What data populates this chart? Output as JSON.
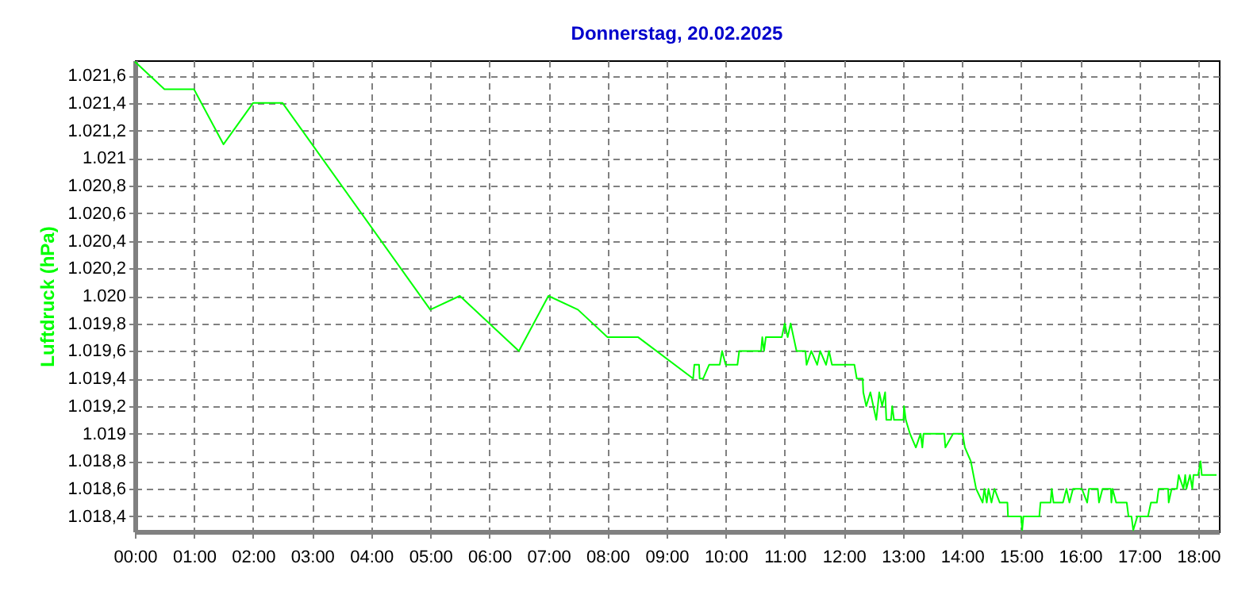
{
  "chart_data": {
    "type": "line",
    "title": "Donnerstag, 20.02.2025",
    "ylabel": "Luftdruck (hPa)",
    "x": [
      0,
      0.5,
      1,
      1.5,
      2,
      2.5,
      5,
      5.5,
      6,
      6.5,
      7,
      7.5,
      8,
      8.52,
      9.45,
      9.47,
      9.55,
      9.56,
      9.62,
      9.72,
      9.9,
      9.94,
      10.0,
      10.2,
      10.23,
      10.6,
      10.62,
      10.65,
      10.68,
      10.95,
      11.0,
      11.05,
      11.1,
      11.15,
      11.2,
      11.35,
      11.37,
      11.45,
      11.55,
      11.6,
      11.7,
      11.75,
      11.8,
      12.18,
      12.22,
      12.32,
      12.33,
      12.38,
      12.45,
      12.5,
      12.55,
      12.6,
      12.65,
      12.7,
      12.72,
      12.8,
      12.82,
      12.85,
      13.01,
      13.02,
      13.05,
      13.12,
      13.22,
      13.3,
      13.33,
      13.35,
      13.7,
      13.72,
      13.85,
      14.01,
      14.05,
      14.15,
      14.24,
      14.35,
      14.38,
      14.42,
      14.45,
      14.5,
      14.55,
      14.64,
      14.77,
      14.78,
      15.0,
      15.02,
      15.04,
      15.31,
      15.33,
      15.5,
      15.52,
      15.55,
      15.71,
      15.77,
      15.82,
      15.88,
      16.03,
      16.12,
      16.15,
      16.3,
      16.32,
      16.38,
      16.52,
      16.53,
      16.55,
      16.61,
      16.79,
      16.82,
      16.87,
      16.9,
      16.97,
      17.15,
      17.2,
      17.3,
      17.33,
      17.49,
      17.5,
      17.55,
      17.64,
      17.67,
      17.75,
      17.78,
      17.8,
      17.86,
      17.9,
      17.92,
      18.0,
      18.04,
      18.06,
      18.31
    ],
    "series": [
      {
        "color": "#00ff00",
        "values": [
          1021.7,
          1021.5,
          1021.5,
          1021.1,
          1021.4,
          1021.4,
          1019.9,
          1020.0,
          1019.8,
          1019.6,
          1020.0,
          1019.9,
          1019.7,
          1019.7,
          1019.4,
          1019.5,
          1019.5,
          1019.4,
          1019.4,
          1019.5,
          1019.5,
          1019.6,
          1019.5,
          1019.5,
          1019.6,
          1019.6,
          1019.7,
          1019.6,
          1019.7,
          1019.7,
          1019.8,
          1019.7,
          1019.8,
          1019.7,
          1019.6,
          1019.6,
          1019.5,
          1019.6,
          1019.5,
          1019.6,
          1019.5,
          1019.6,
          1019.5,
          1019.5,
          1019.4,
          1019.4,
          1019.3,
          1019.2,
          1019.3,
          1019.2,
          1019.1,
          1019.3,
          1019.2,
          1019.3,
          1019.1,
          1019.1,
          1019.2,
          1019.1,
          1019.1,
          1019.2,
          1019.1,
          1019.0,
          1018.9,
          1019.0,
          1018.9,
          1019.0,
          1019.0,
          1018.9,
          1019.0,
          1019.0,
          1018.9,
          1018.8,
          1018.6,
          1018.5,
          1018.6,
          1018.5,
          1018.6,
          1018.5,
          1018.6,
          1018.5,
          1018.5,
          1018.4,
          1018.4,
          1018.3,
          1018.4,
          1018.4,
          1018.5,
          1018.5,
          1018.6,
          1018.5,
          1018.5,
          1018.6,
          1018.5,
          1018.6,
          1018.6,
          1018.5,
          1018.6,
          1018.6,
          1018.5,
          1018.6,
          1018.6,
          1018.5,
          1018.6,
          1018.5,
          1018.5,
          1018.4,
          1018.4,
          1018.3,
          1018.4,
          1018.4,
          1018.5,
          1018.5,
          1018.6,
          1018.6,
          1018.5,
          1018.6,
          1018.6,
          1018.7,
          1018.6,
          1018.7,
          1018.6,
          1018.7,
          1018.6,
          1018.7,
          1018.7,
          1018.8,
          1018.7,
          1018.7
        ]
      }
    ],
    "xlim": [
      0,
      18.35
    ],
    "ylim": [
      1018.29,
      1021.71
    ],
    "xticks": [
      {
        "value": 0,
        "label": "00:00"
      },
      {
        "value": 1,
        "label": "01:00"
      },
      {
        "value": 2,
        "label": "02:00"
      },
      {
        "value": 3,
        "label": "03:00"
      },
      {
        "value": 4,
        "label": "04:00"
      },
      {
        "value": 5,
        "label": "05:00"
      },
      {
        "value": 6,
        "label": "06:00"
      },
      {
        "value": 7,
        "label": "07:00"
      },
      {
        "value": 8,
        "label": "08:00"
      },
      {
        "value": 9,
        "label": "09:00"
      },
      {
        "value": 10,
        "label": "10:00"
      },
      {
        "value": 11,
        "label": "11:00"
      },
      {
        "value": 12,
        "label": "12:00"
      },
      {
        "value": 13,
        "label": "13:00"
      },
      {
        "value": 14,
        "label": "14:00"
      },
      {
        "value": 15,
        "label": "15:00"
      },
      {
        "value": 16,
        "label": "16:00"
      },
      {
        "value": 17,
        "label": "17:00"
      },
      {
        "value": 18,
        "label": "18:00"
      }
    ],
    "yticks": [
      {
        "value": 1018.4,
        "label": "1.018,4"
      },
      {
        "value": 1018.6,
        "label": "1.018,6"
      },
      {
        "value": 1018.8,
        "label": "1.018,8"
      },
      {
        "value": 1019.0,
        "label": "1.019"
      },
      {
        "value": 1019.2,
        "label": "1.019,2"
      },
      {
        "value": 1019.4,
        "label": "1.019,4"
      },
      {
        "value": 1019.6,
        "label": "1.019,6"
      },
      {
        "value": 1019.8,
        "label": "1.019,8"
      },
      {
        "value": 1020.0,
        "label": "1.020"
      },
      {
        "value": 1020.2,
        "label": "1.020,2"
      },
      {
        "value": 1020.4,
        "label": "1.020,4"
      },
      {
        "value": 1020.6,
        "label": "1.020,6"
      },
      {
        "value": 1020.8,
        "label": "1.020,8"
      },
      {
        "value": 1021.0,
        "label": "1.021"
      },
      {
        "value": 1021.2,
        "label": "1.021,2"
      },
      {
        "value": 1021.4,
        "label": "1.021,4"
      },
      {
        "value": 1021.6,
        "label": "1.021,6"
      }
    ],
    "grid": true,
    "marker": "none",
    "line_style": "solid"
  }
}
